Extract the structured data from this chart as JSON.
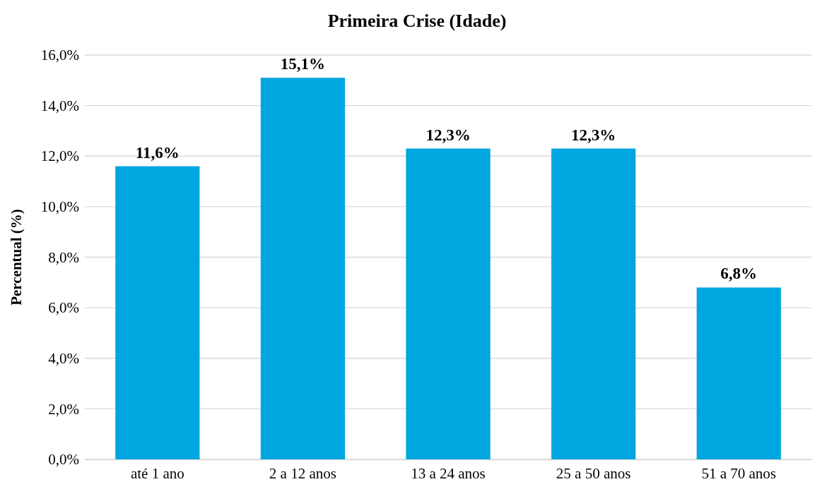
{
  "chart_data": {
    "type": "bar",
    "title": "Primeira Crise (Idade)",
    "ylabel": "Percentual (%)",
    "categories": [
      "até 1 ano",
      "2 a 12 anos",
      "13 a 24 anos",
      "25 a 50 anos",
      "51 a 70 anos"
    ],
    "values": [
      11.6,
      15.1,
      12.3,
      12.3,
      6.8
    ],
    "value_labels": [
      "11,6%",
      "15,1%",
      "12,3%",
      "12,3%",
      "6,8%"
    ],
    "color": "#00a6e0",
    "ylim": [
      0,
      16
    ],
    "yticks": [
      {
        "value": 0,
        "label": "0,0%"
      },
      {
        "value": 2,
        "label": "2,0%"
      },
      {
        "value": 4,
        "label": "4,0%"
      },
      {
        "value": 6,
        "label": "6,0%"
      },
      {
        "value": 8,
        "label": "8,0%"
      },
      {
        "value": 10,
        "label": "10,0%"
      },
      {
        "value": 12,
        "label": "12,0%"
      },
      {
        "value": 14,
        "label": "14,0%"
      },
      {
        "value": 16,
        "label": "16,0%"
      }
    ],
    "grid": "y"
  }
}
